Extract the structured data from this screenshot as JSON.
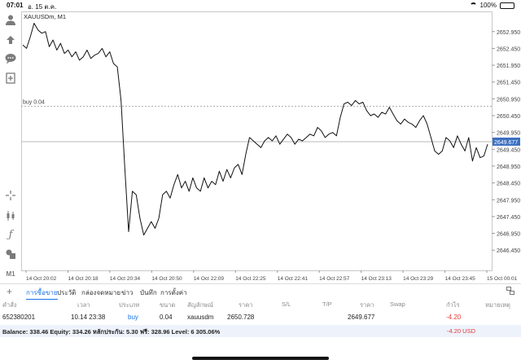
{
  "status_bar": {
    "time": "07:01",
    "date": "อ. 15 ต.ค.",
    "battery": "100%"
  },
  "toolbar": {
    "icons": [
      "user-icon",
      "share-icon",
      "chat-icon",
      "add-indicator-icon",
      "crosshair-icon",
      "candle-icon",
      "function-icon",
      "shapes-icon",
      "timeframe-icon"
    ],
    "timeframe_label": "M1"
  },
  "chart_data": {
    "type": "line",
    "title": "XAUUSDm, M1",
    "ylim": [
      2645.85,
      2653.55
    ],
    "y_ticks": [
      2652.95,
      2652.45,
      2651.95,
      2651.45,
      2650.95,
      2650.45,
      2649.95,
      2649.45,
      2648.95,
      2648.45,
      2647.95,
      2647.45,
      2646.95,
      2646.45
    ],
    "y_tick_labels": [
      "2652.950",
      "2652.450",
      "2651.950",
      "2651.450",
      "2650.950",
      "2650.450",
      "2649.950",
      "2649.450",
      "2648.950",
      "2648.450",
      "2647.950",
      "2647.450",
      "2646.950",
      "2646.450"
    ],
    "x_tick_labels": [
      "14 Oct 20:02",
      "14 Oct 20:18",
      "14 Oct 20:34",
      "14 Oct 20:50",
      "14 Oct 22:09",
      "14 Oct 22:25",
      "14 Oct 22:41",
      "14 Oct 22:57",
      "14 Oct 23:13",
      "14 Oct 23:29",
      "14 Oct 23:45",
      "15 Oct 00:01"
    ],
    "order_line": {
      "label": "buy 0.04",
      "price": 2650.728
    },
    "current_price": {
      "label": "2649.677",
      "price": 2649.677
    },
    "series": [
      {
        "values": [
          2652.55,
          2652.45,
          2652.8,
          2653.2,
          2653.0,
          2652.9,
          2652.95,
          2652.5,
          2652.7,
          2652.4,
          2652.6,
          2652.3,
          2652.4,
          2652.2,
          2652.35,
          2652.1,
          2652.2,
          2652.4,
          2652.15,
          2652.25,
          2652.3,
          2652.45,
          2652.2,
          2652.35,
          2652.0,
          2651.9,
          2650.9,
          2648.9,
          2647.0,
          2648.2,
          2648.1,
          2647.4,
          2646.9,
          2647.1,
          2647.3,
          2647.1,
          2647.4,
          2648.1,
          2648.2,
          2648.0,
          2648.4,
          2648.7,
          2648.3,
          2648.5,
          2648.2,
          2648.6,
          2648.3,
          2648.2,
          2648.6,
          2648.3,
          2648.5,
          2648.4,
          2648.8,
          2648.5,
          2648.85,
          2648.6,
          2648.9,
          2649.0,
          2648.7,
          2649.3,
          2649.8,
          2649.7,
          2649.6,
          2649.5,
          2649.7,
          2649.8,
          2649.7,
          2649.85,
          2649.6,
          2649.75,
          2649.9,
          2649.8,
          2649.6,
          2649.75,
          2649.7,
          2649.8,
          2649.9,
          2649.85,
          2650.1,
          2650.0,
          2649.8,
          2649.9,
          2649.95,
          2649.85,
          2650.4,
          2650.8,
          2650.85,
          2650.75,
          2650.9,
          2650.8,
          2650.85,
          2650.6,
          2650.45,
          2650.5,
          2650.4,
          2650.55,
          2650.5,
          2650.7,
          2650.5,
          2650.3,
          2650.2,
          2650.35,
          2650.25,
          2650.2,
          2650.1,
          2650.3,
          2650.45,
          2650.2,
          2649.8,
          2649.4,
          2649.3,
          2649.4,
          2649.8,
          2649.7,
          2649.5,
          2649.85,
          2649.6,
          2649.4,
          2649.8,
          2649.1,
          2649.5,
          2649.2,
          2649.25,
          2649.6
        ]
      }
    ]
  },
  "tabs": {
    "items": [
      "การซื้อขาย",
      "ประวัติ",
      "กล่องจดหมาย",
      "ข่าว",
      "บันทึก",
      "การตั้งค่า"
    ],
    "active": "การซื้อขาย"
  },
  "table": {
    "columns": [
      "คำสั่ง",
      "เวลา",
      "ประเภท",
      "ขนาด",
      "สัญลักษณ์",
      "ราคา",
      "S/L",
      "T/P",
      "ราคา",
      "Swap",
      "กำไร",
      "หมายเหตุ"
    ],
    "row": {
      "order": "652380201",
      "time": "10.14 23:38",
      "type": "buy",
      "volume": "0.04",
      "symbol": "xauusdm",
      "open_price": "2650.728",
      "current_price": "2649.677",
      "profit": "-4.20"
    }
  },
  "balance": {
    "text": "Balance: 338.46 Equity: 334.26 หลักประกัน: 5.30 ฟรี: 328.96 Level: 6 305.06%",
    "value": "-4.20  USD"
  },
  "colors": {
    "accent": "#1a73e8",
    "negative": "#e53935",
    "price_tag": "#3b6fc2"
  }
}
